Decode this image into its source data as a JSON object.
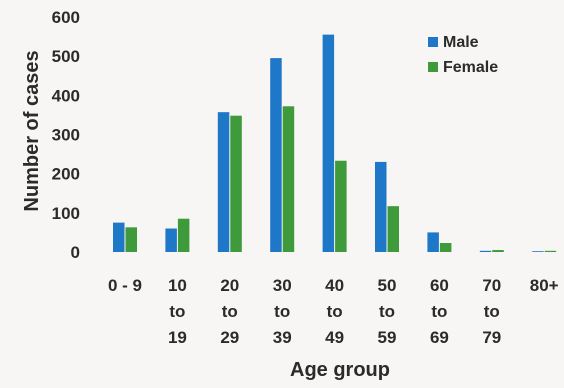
{
  "chart_data": {
    "type": "bar",
    "title": "",
    "xlabel": "Age group",
    "ylabel": "Number of cases",
    "ylim": [
      0,
      600
    ],
    "yticks": [
      0,
      100,
      200,
      300,
      400,
      500,
      600
    ],
    "grid": false,
    "legend_position": "top-right",
    "categories": [
      [
        "0 - 9"
      ],
      [
        "10",
        "to",
        "19"
      ],
      [
        "20",
        "to",
        "29"
      ],
      [
        "30",
        "to",
        "39"
      ],
      [
        "40",
        "to",
        "49"
      ],
      [
        "50",
        "to",
        "59"
      ],
      [
        "60",
        "to",
        "69"
      ],
      [
        "70",
        "to",
        "79"
      ],
      [
        "80+"
      ]
    ],
    "series": [
      {
        "name": "Male",
        "color": "#1f77c8",
        "values": [
          75,
          60,
          357,
          495,
          555,
          230,
          50,
          3,
          1
        ]
      },
      {
        "name": "Female",
        "color": "#3e9a3a",
        "values": [
          63,
          85,
          348,
          372,
          233,
          117,
          23,
          5,
          3
        ]
      }
    ]
  }
}
